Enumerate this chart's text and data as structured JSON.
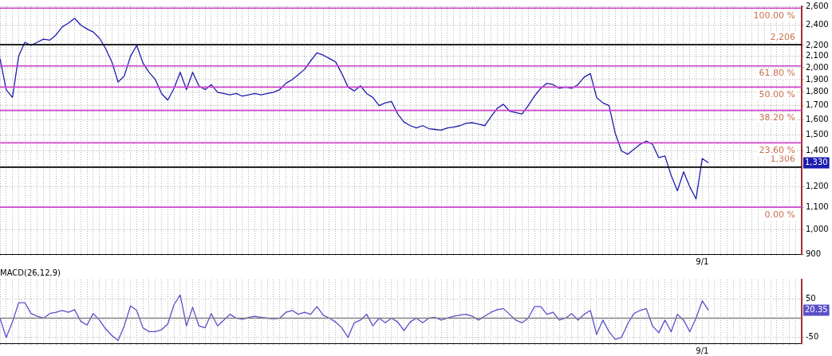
{
  "chart_data": [
    {
      "type": "line",
      "log": "y",
      "grid": true,
      "marker": "none",
      "categories": [
        null,
        null,
        null,
        null,
        null,
        null,
        null,
        null,
        null,
        null,
        null,
        null,
        null,
        null,
        null,
        null,
        null,
        null,
        null,
        null,
        null,
        null,
        null,
        null,
        null,
        null,
        null,
        null,
        null,
        null,
        null,
        null,
        null,
        null,
        null,
        null,
        null,
        null,
        null,
        null,
        null,
        null,
        null,
        null,
        null,
        null,
        null,
        null,
        null,
        null,
        null,
        null,
        null,
        null,
        null,
        null,
        null,
        null,
        null,
        null,
        null,
        null,
        null,
        null,
        null,
        null,
        null,
        null,
        null,
        null,
        null,
        null,
        null,
        null,
        null,
        null,
        null,
        null,
        null,
        null,
        null,
        null,
        null,
        null,
        null,
        null,
        null,
        null,
        null,
        null,
        null,
        null,
        null,
        null,
        null,
        null,
        null,
        null,
        null,
        null,
        null,
        null,
        null,
        null,
        null,
        null,
        null,
        null,
        null,
        null,
        null,
        null,
        null,
        "9/1",
        null,
        null,
        null,
        null,
        null,
        null,
        null,
        null,
        null,
        null,
        null,
        null,
        null,
        null,
        null,
        null
      ],
      "series": [
        {
          "color": "#1c1cae",
          "values": [
            2080,
            1820,
            1760,
            2100,
            2230,
            2200,
            2230,
            2260,
            2250,
            2300,
            2380,
            2420,
            2470,
            2400,
            2360,
            2330,
            2270,
            2170,
            2050,
            1880,
            1930,
            2100,
            2200,
            2040,
            1960,
            1900,
            1790,
            1740,
            1830,
            1960,
            1820,
            1960,
            1850,
            1820,
            1860,
            1800,
            1790,
            1780,
            1790,
            1770,
            1780,
            1790,
            1780,
            1790,
            1800,
            1820,
            1870,
            1900,
            1940,
            1985,
            2060,
            2130,
            2110,
            2080,
            2050,
            1950,
            1840,
            1810,
            1850,
            1790,
            1760,
            1700,
            1720,
            1730,
            1640,
            1585,
            1560,
            1545,
            1560,
            1540,
            1535,
            1530,
            1545,
            1550,
            1560,
            1575,
            1580,
            1570,
            1560,
            1620,
            1680,
            1710,
            1660,
            1650,
            1640,
            1700,
            1770,
            1830,
            1870,
            1860,
            1830,
            1840,
            1830,
            1860,
            1920,
            1950,
            1760,
            1720,
            1700,
            1510,
            1400,
            1380,
            1410,
            1440,
            1460,
            1440,
            1360,
            1370,
            1260,
            1180,
            1280,
            1200,
            1140,
            1355,
            1330,
            null,
            null,
            null,
            null,
            null,
            null,
            null,
            null,
            null,
            null,
            null,
            null,
            null,
            null,
            null
          ]
        }
      ],
      "ylim": [
        900,
        2600
      ],
      "yticks": [
        {
          "value": 900,
          "label": "900"
        },
        {
          "value": 1000,
          "label": "1,000"
        },
        {
          "value": 1100,
          "label": "1,100"
        },
        {
          "value": 1200,
          "label": "1,200"
        },
        {
          "value": 1400,
          "label": "1,400"
        },
        {
          "value": 1500,
          "label": "1,500"
        },
        {
          "value": 1600,
          "label": "1,600"
        },
        {
          "value": 1700,
          "label": "1,700"
        },
        {
          "value": 1800,
          "label": "1,800"
        },
        {
          "value": 1900,
          "label": "1,900"
        },
        {
          "value": 2000,
          "label": "2,000"
        },
        {
          "value": 2100,
          "label": "2,100"
        },
        {
          "value": 2200,
          "label": "2,200"
        },
        {
          "value": 2400,
          "label": "2,400"
        },
        {
          "value": 2600,
          "label": "2,600"
        }
      ],
      "ref_lines": [
        {
          "axis": "y",
          "value": 2580,
          "color": "#cc44cc"
        },
        {
          "axis": "y",
          "value": 2206,
          "label": "2,206",
          "color": "#000000"
        },
        {
          "axis": "y",
          "value": 2015,
          "color": "#cc44cc"
        },
        {
          "axis": "y",
          "value": 1840,
          "color": "#cc44cc"
        },
        {
          "axis": "y",
          "value": 1665,
          "color": "#cc44cc"
        },
        {
          "axis": "y",
          "value": 1449,
          "color": "#cc44cc"
        },
        {
          "axis": "y",
          "value": 1306,
          "label": "1,306",
          "color": "#000000"
        },
        {
          "axis": "y",
          "value": 1100,
          "color": "#cc44cc"
        }
      ],
      "annotations": [
        {
          "text": "100.00 %",
          "y": 2580
        },
        {
          "text": "61.80 %",
          "y": 2015
        },
        {
          "text": "50.00 %",
          "y": 1840
        },
        {
          "text": "38.20 %",
          "y": 1665
        },
        {
          "text": "23.60 %",
          "y": 1449
        },
        {
          "text": "0.00 %",
          "y": 1100
        },
        {
          "text": "1,330",
          "y": 1330
        }
      ]
    },
    {
      "type": "line",
      "title": "MACD(26,12,9)",
      "grid": true,
      "marker": "none",
      "categories": [
        null,
        null,
        null,
        null,
        null,
        null,
        null,
        null,
        null,
        null,
        null,
        null,
        null,
        null,
        null,
        null,
        null,
        null,
        null,
        null,
        null,
        null,
        null,
        null,
        null,
        null,
        null,
        null,
        null,
        null,
        null,
        null,
        null,
        null,
        null,
        null,
        null,
        null,
        null,
        null,
        null,
        null,
        null,
        null,
        null,
        null,
        null,
        null,
        null,
        null,
        null,
        null,
        null,
        null,
        null,
        null,
        null,
        null,
        null,
        null,
        null,
        null,
        null,
        null,
        null,
        null,
        null,
        null,
        null,
        null,
        null,
        null,
        null,
        null,
        null,
        null,
        null,
        null,
        null,
        null,
        null,
        null,
        null,
        null,
        null,
        null,
        null,
        null,
        null,
        null,
        null,
        null,
        null,
        null,
        null,
        null,
        null,
        null,
        null,
        null,
        null,
        null,
        null,
        null,
        null,
        null,
        null,
        null,
        null,
        null,
        null,
        null,
        null,
        "9/1",
        null,
        null,
        null,
        null,
        null,
        null,
        null,
        null,
        null,
        null,
        null,
        null,
        null,
        null,
        null,
        null
      ],
      "series": [
        {
          "color": "#5a4fc8",
          "values": [
            0,
            -50,
            -10,
            40,
            40,
            12,
            5,
            0,
            12,
            15,
            20,
            15,
            22,
            -8,
            -18,
            12,
            -5,
            -28,
            -45,
            -58,
            -20,
            32,
            20,
            -25,
            -35,
            -35,
            -30,
            -15,
            35,
            60,
            -20,
            28,
            -20,
            -25,
            12,
            -20,
            -5,
            10,
            0,
            -3,
            2,
            5,
            2,
            0,
            -2,
            0,
            15,
            20,
            10,
            15,
            10,
            30,
            8,
            0,
            -10,
            -25,
            -50,
            -12,
            -5,
            10,
            -20,
            0,
            -12,
            0,
            -10,
            -32,
            -10,
            0,
            -12,
            0,
            2,
            -5,
            0,
            5,
            8,
            10,
            5,
            -5,
            5,
            15,
            22,
            25,
            10,
            -5,
            -12,
            0,
            30,
            30,
            10,
            15,
            -5,
            0,
            12,
            -5,
            10,
            20,
            -42,
            -5,
            -35,
            -55,
            -50,
            -15,
            12,
            20,
            25,
            -20,
            -38,
            -5,
            -35,
            10,
            -5,
            -35,
            0,
            45,
            20.35,
            null,
            null,
            null,
            null,
            null,
            null,
            null,
            null,
            null,
            null,
            null,
            null,
            null,
            null,
            null
          ]
        }
      ],
      "ylim": [
        -65,
        100
      ],
      "yticks": [
        -50,
        50
      ],
      "ref_lines": [
        {
          "axis": "y",
          "value": 0,
          "color": "#808080"
        }
      ],
      "annotations": [
        {
          "text": "20.35",
          "y": 20.35
        }
      ]
    }
  ]
}
